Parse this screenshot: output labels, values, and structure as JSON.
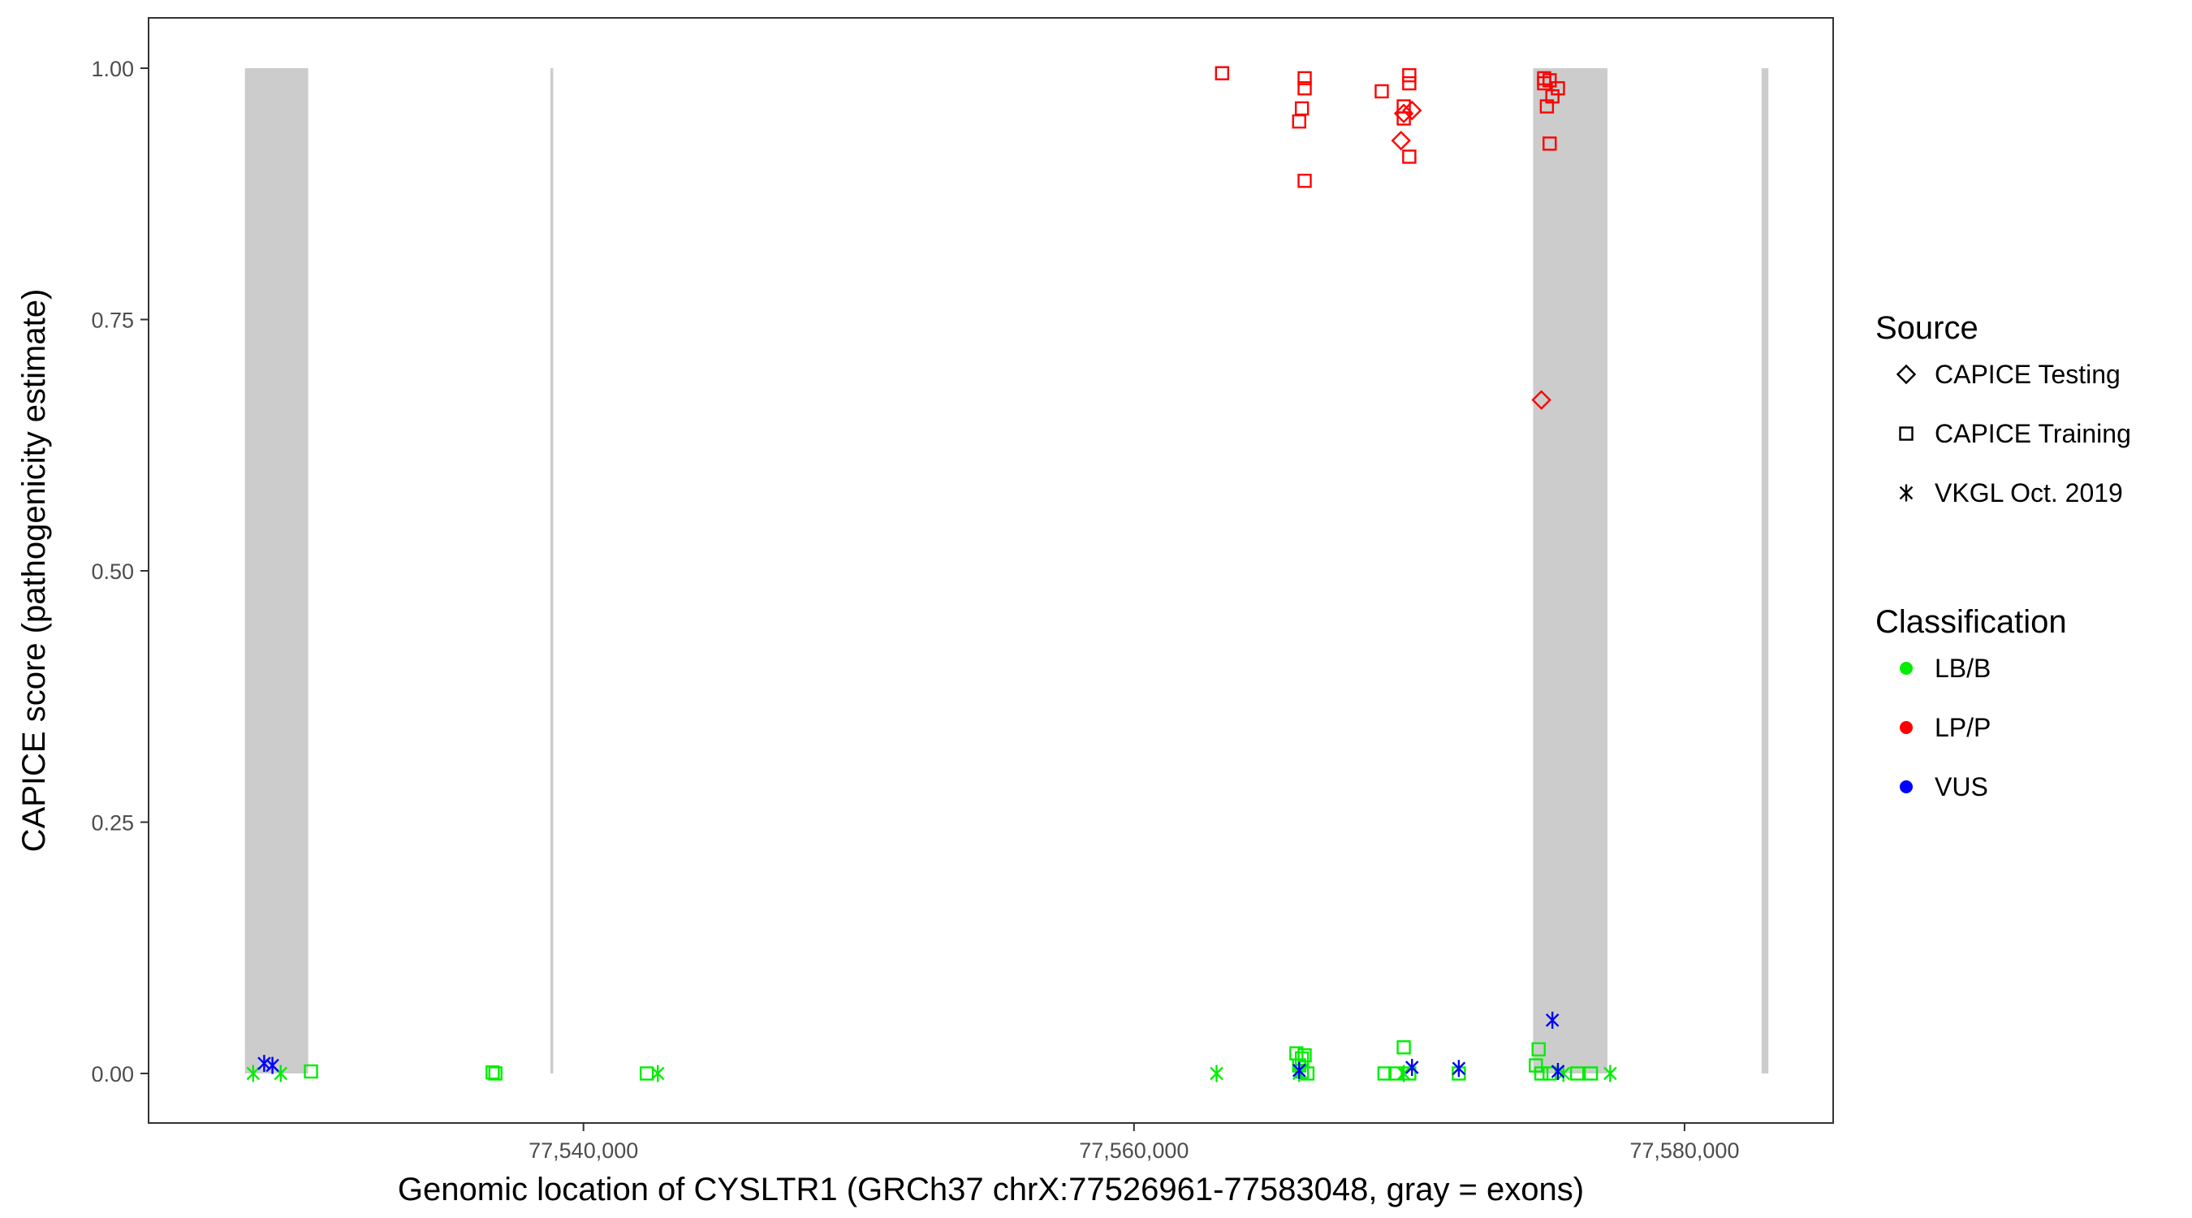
{
  "chart_data": {
    "type": "scatter",
    "title": "",
    "xlabel": "Genomic location of CYSLTR1 (GRCh37 chrX:77526961-77583048, gray = exons)",
    "ylabel": "CAPICE score (pathogenicity estimate)",
    "xlim": [
      77524200,
      77585400
    ],
    "ylim": [
      -0.047,
      1.05
    ],
    "x_ticks": [
      77540000,
      77560000,
      77580000
    ],
    "x_tick_labels": [
      "77,540,000",
      "77,560,000",
      "77,580,000"
    ],
    "y_ticks": [
      0,
      0.25,
      0.5,
      0.75,
      1.0
    ],
    "y_tick_labels": [
      "0.00",
      "0.25",
      "0.50",
      "0.75",
      "1.00"
    ],
    "grid": false,
    "exons": [
      [
        77527700,
        77530000
      ],
      [
        77538800,
        77538900
      ],
      [
        77574500,
        77577200
      ],
      [
        77582800,
        77583048
      ]
    ],
    "exon_color": "#cccccc",
    "legend_placement": "right",
    "legend": {
      "source": {
        "title": "Source",
        "items": [
          {
            "label": "CAPICE Testing",
            "shape": "diamond"
          },
          {
            "label": "CAPICE Training",
            "shape": "square"
          },
          {
            "label": "VKGL Oct. 2019",
            "shape": "asterisk"
          }
        ]
      },
      "classification": {
        "title": "Classification",
        "items": [
          {
            "label": "LB/B",
            "color": "#00ee00"
          },
          {
            "label": "LP/P",
            "color": "#ff0000"
          },
          {
            "label": "VUS",
            "color": "#0000ff"
          }
        ]
      }
    },
    "series": [
      {
        "source": "CAPICE Training",
        "classification": "LP/P",
        "shape": "square",
        "color": "#ff0000",
        "points": [
          [
            77563200,
            0.995
          ],
          [
            77566200,
            0.99
          ],
          [
            77566200,
            0.98
          ],
          [
            77566100,
            0.96
          ],
          [
            77566000,
            0.947
          ],
          [
            77566200,
            0.888
          ],
          [
            77569000,
            0.977
          ],
          [
            77570000,
            0.985
          ],
          [
            77570000,
            0.993
          ],
          [
            77569800,
            0.962
          ],
          [
            77569800,
            0.95
          ],
          [
            77570000,
            0.912
          ],
          [
            77574900,
            0.99
          ],
          [
            77575100,
            0.988
          ],
          [
            77574900,
            0.985
          ],
          [
            77575400,
            0.98
          ],
          [
            77575200,
            0.972
          ],
          [
            77575000,
            0.962
          ],
          [
            77575100,
            0.925
          ]
        ]
      },
      {
        "source": "CAPICE Testing",
        "classification": "LP/P",
        "shape": "diamond",
        "color": "#ff0000",
        "points": [
          [
            77570100,
            0.958
          ],
          [
            77569800,
            0.955
          ],
          [
            77569700,
            0.928
          ],
          [
            77574800,
            0.67
          ]
        ]
      },
      {
        "source": "CAPICE Training",
        "classification": "LB/B",
        "shape": "square",
        "color": "#00ee00",
        "points": [
          [
            77530100,
            0.002
          ],
          [
            77536700,
            0.001
          ],
          [
            77536800,
            0.0
          ],
          [
            77542300,
            0.0
          ],
          [
            77565900,
            0.02
          ],
          [
            77566100,
            0.015
          ],
          [
            77566200,
            0.018
          ],
          [
            77566000,
            0.008
          ],
          [
            77566100,
            0.002
          ],
          [
            77566300,
            0.0
          ],
          [
            77569100,
            0.0
          ],
          [
            77569500,
            0.0
          ],
          [
            77569800,
            0.026
          ],
          [
            77570000,
            0.0
          ],
          [
            77571800,
            0.0
          ],
          [
            77574700,
            0.024
          ],
          [
            77574600,
            0.008
          ],
          [
            77574800,
            0.0
          ],
          [
            77575100,
            0.0
          ],
          [
            77576100,
            0.0
          ],
          [
            77576600,
            0.0
          ]
        ]
      },
      {
        "source": "VKGL Oct. 2019",
        "classification": "LB/B",
        "shape": "asterisk",
        "color": "#00ee00",
        "points": [
          [
            77528000,
            0.0
          ],
          [
            77529000,
            0.0
          ],
          [
            77542700,
            0.0
          ],
          [
            77563000,
            0.0
          ],
          [
            77566000,
            0.0
          ],
          [
            77569800,
            0.0
          ],
          [
            77575600,
            0.0
          ],
          [
            77577300,
            0.0
          ]
        ]
      },
      {
        "source": "VKGL Oct. 2019",
        "classification": "VUS",
        "shape": "asterisk",
        "color": "#0000ff",
        "points": [
          [
            77528400,
            0.01
          ],
          [
            77528700,
            0.008
          ],
          [
            77566000,
            0.003
          ],
          [
            77570100,
            0.006
          ],
          [
            77571800,
            0.005
          ],
          [
            77575200,
            0.053
          ],
          [
            77575400,
            0.002
          ]
        ]
      }
    ]
  }
}
